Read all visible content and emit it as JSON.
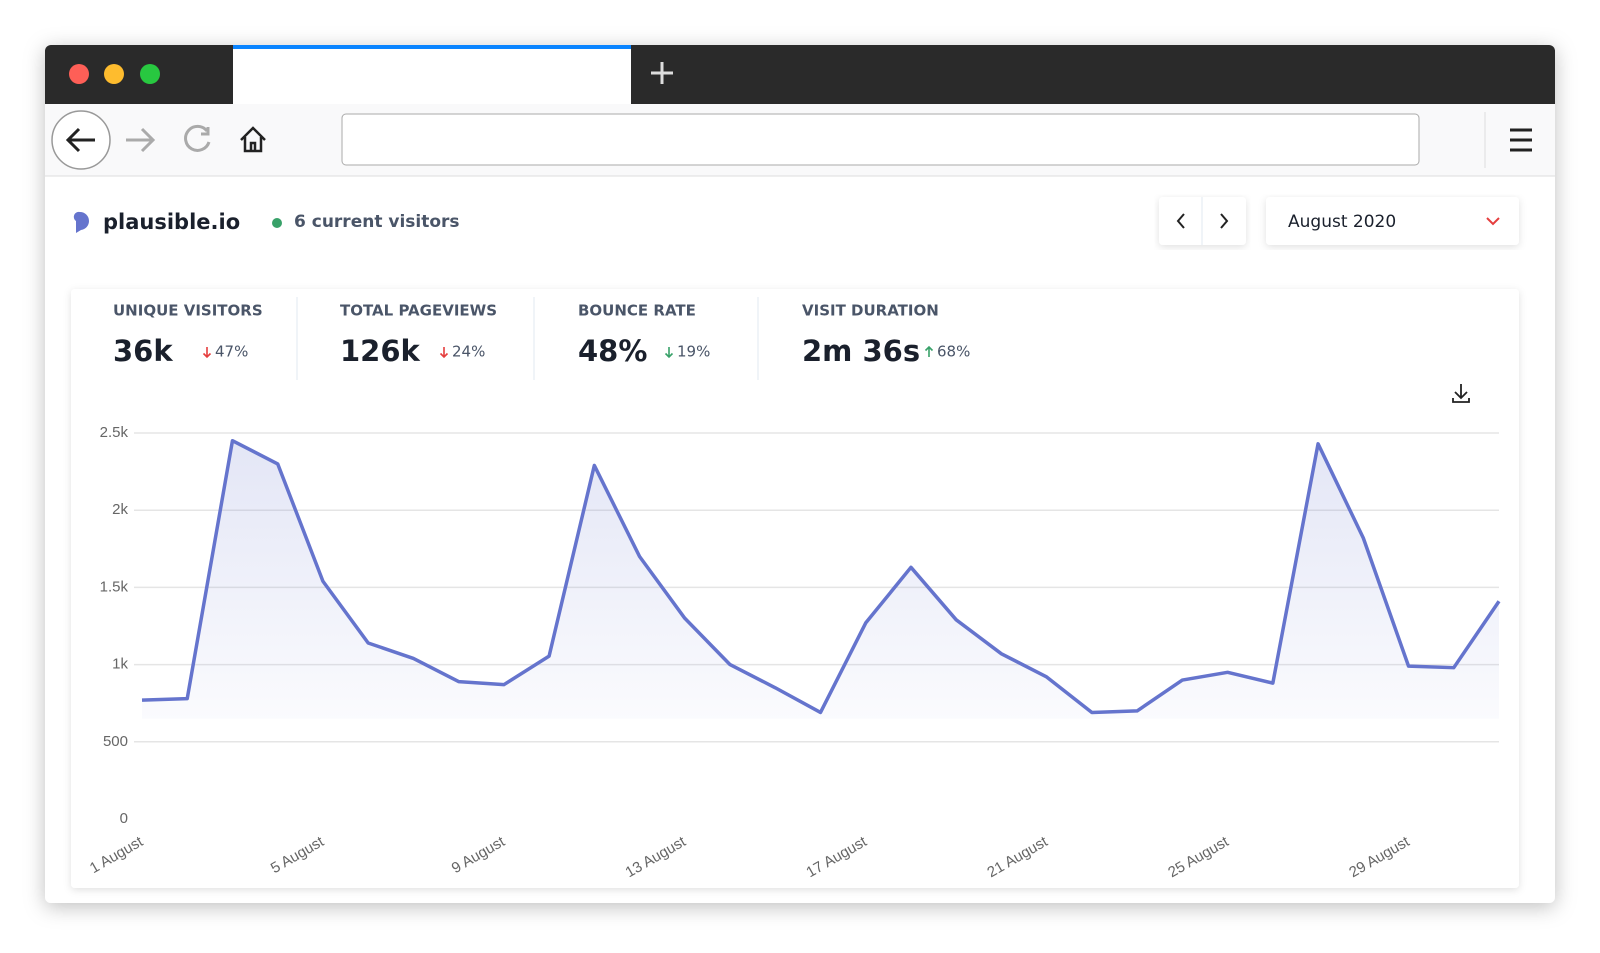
{
  "header": {
    "site": "plausible.io",
    "current_visitors": "6 current visitors",
    "period": "August 2020"
  },
  "stats": [
    {
      "label": "UNIQUE VISITORS",
      "value": "36k",
      "change": "47%",
      "direction": "down",
      "color": "#e53e3e"
    },
    {
      "label": "TOTAL PAGEVIEWS",
      "value": "126k",
      "change": "24%",
      "direction": "down",
      "color": "#e53e3e"
    },
    {
      "label": "BOUNCE RATE",
      "value": "48%",
      "change": "19%",
      "direction": "down",
      "color": "#38a169"
    },
    {
      "label": "VISIT DURATION",
      "value": "2m 36s",
      "change": "68%",
      "direction": "up",
      "color": "#38a169"
    }
  ],
  "chart_data": {
    "type": "line",
    "categories": [
      "1 August",
      null,
      null,
      null,
      "5 August",
      null,
      null,
      null,
      "9 August",
      null,
      null,
      null,
      "13 August",
      null,
      null,
      null,
      "17 August",
      null,
      null,
      null,
      "21 August",
      null,
      null,
      null,
      "25 August",
      null,
      null,
      null,
      "29 August",
      null,
      null
    ],
    "series": [
      {
        "name": "Visitors",
        "color": "#6574cd",
        "values": [
          770,
          780,
          2450,
          2300,
          1540,
          1140,
          1040,
          890,
          870,
          1055,
          2290,
          1700,
          1300,
          1000,
          850,
          690,
          1270,
          1630,
          1290,
          1070,
          920,
          690,
          700,
          900,
          950,
          880,
          2430,
          1820,
          990,
          980,
          1410
        ]
      }
    ],
    "ylim": [
      0,
      2500
    ],
    "yticks": [
      0,
      500,
      {
        "value": 1000,
        "label": "1k"
      },
      {
        "value": 1500,
        "label": "1.5k"
      },
      {
        "value": 2000,
        "label": "2k"
      },
      {
        "value": 2500,
        "label": "2.5k"
      }
    ],
    "grid": true
  }
}
